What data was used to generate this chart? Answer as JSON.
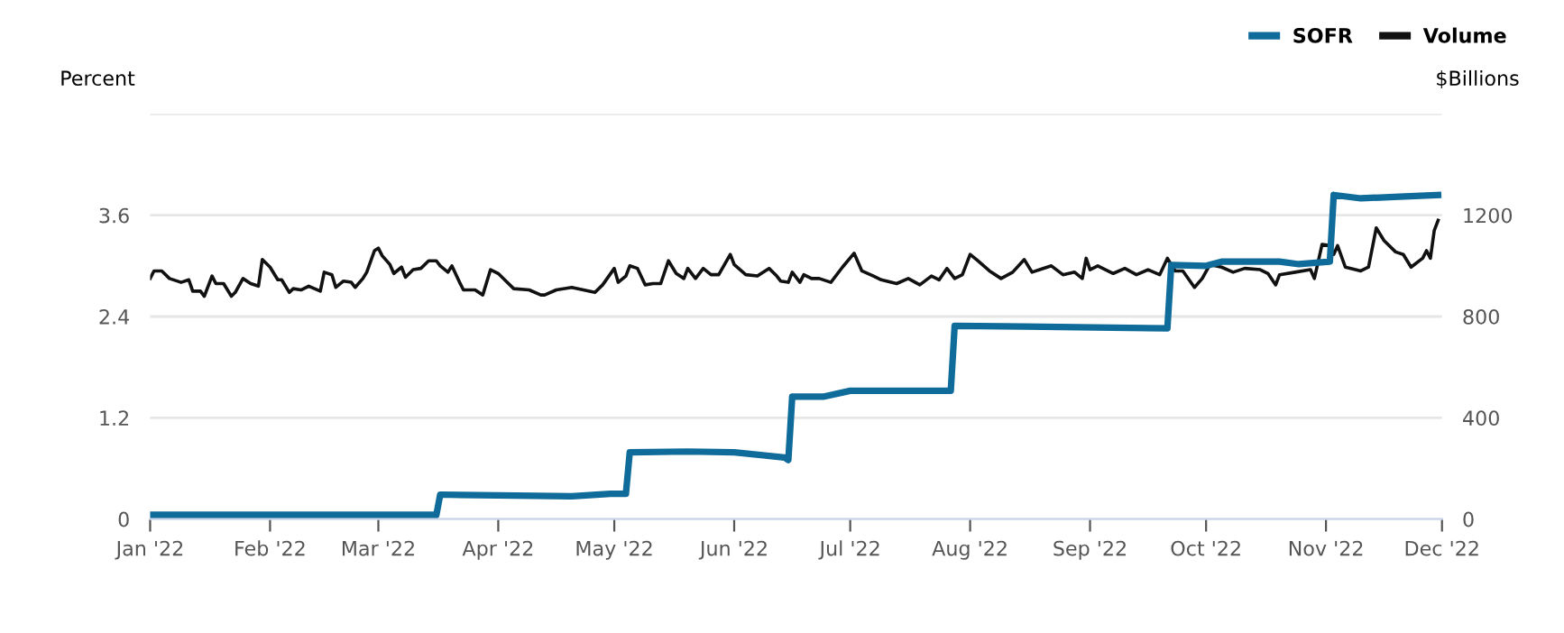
{
  "chart_data": {
    "type": "line",
    "xlabel": null,
    "ylabel": "Percent",
    "y2label": "$Billions",
    "xlim": [
      "2022-01-01",
      "2022-12-01"
    ],
    "xticks": [
      {
        "value": "2022-01-01",
        "label": "Jan '22"
      },
      {
        "value": "2022-02-01",
        "label": "Feb '22"
      },
      {
        "value": "2022-03-01",
        "label": "Mar '22"
      },
      {
        "value": "2022-04-01",
        "label": "Apr '22"
      },
      {
        "value": "2022-05-01",
        "label": "May '22"
      },
      {
        "value": "2022-06-01",
        "label": "Jun '22"
      },
      {
        "value": "2022-07-01",
        "label": "Jul '22"
      },
      {
        "value": "2022-08-01",
        "label": "Aug '22"
      },
      {
        "value": "2022-09-01",
        "label": "Sep '22"
      },
      {
        "value": "2022-10-01",
        "label": "Oct '22"
      },
      {
        "value": "2022-11-01",
        "label": "Nov '22"
      },
      {
        "value": "2022-12-01",
        "label": "Dec '22"
      }
    ],
    "ylim": [
      0,
      4.8
    ],
    "yticks": [
      0,
      1.2,
      2.4,
      3.6,
      {
        "value": 4.8,
        "label": null
      }
    ],
    "y2lim": [
      0,
      1600
    ],
    "y2ticks": [
      0,
      400,
      800,
      1200
    ],
    "grid": "y",
    "legend": "top right",
    "marker": "none",
    "line_style": "solid",
    "series": [
      {
        "name": "SOFR",
        "color": "#0f6b99",
        "axis": "y",
        "x": [
          "2022-01-01",
          "2022-03-16",
          "2022-03-17",
          "2022-04-01",
          "2022-04-20",
          "2022-04-30",
          "2022-05-04",
          "2022-05-05",
          "2022-05-20",
          "2022-06-01",
          "2022-06-14",
          "2022-06-15",
          "2022-06-16",
          "2022-06-24",
          "2022-07-01",
          "2022-07-27",
          "2022-07-28",
          "2022-08-15",
          "2022-09-21",
          "2022-09-22",
          "2022-10-01",
          "2022-10-05",
          "2022-10-20",
          "2022-10-25",
          "2022-11-02",
          "2022-11-03",
          "2022-11-10",
          "2022-11-20",
          "2022-11-30"
        ],
        "values": [
          0.05,
          0.05,
          0.29,
          0.28,
          0.27,
          0.3,
          0.3,
          0.79,
          0.8,
          0.79,
          0.73,
          0.7,
          1.45,
          1.45,
          1.52,
          1.52,
          2.29,
          2.28,
          2.26,
          3.01,
          3.0,
          3.05,
          3.05,
          3.02,
          3.05,
          3.84,
          3.8,
          3.82,
          3.84
        ]
      },
      {
        "name": "Volume",
        "color": "#111111",
        "axis": "y2",
        "x": [
          "2022-01-01",
          "2022-01-02",
          "2022-01-04",
          "2022-01-06",
          "2022-01-09",
          "2022-01-11",
          "2022-01-12",
          "2022-01-14",
          "2022-01-15",
          "2022-01-17",
          "2022-01-18",
          "2022-01-20",
          "2022-01-22",
          "2022-01-23",
          "2022-01-25",
          "2022-01-27",
          "2022-01-29",
          "2022-01-30",
          "2022-02-01",
          "2022-02-03",
          "2022-02-04",
          "2022-02-06",
          "2022-02-07",
          "2022-02-09",
          "2022-02-11",
          "2022-02-14",
          "2022-02-15",
          "2022-02-17",
          "2022-02-18",
          "2022-02-20",
          "2022-02-22",
          "2022-02-23",
          "2022-02-25",
          "2022-02-26",
          "2022-02-28",
          "2022-03-01",
          "2022-03-02",
          "2022-03-04",
          "2022-03-05",
          "2022-03-07",
          "2022-03-08",
          "2022-03-10",
          "2022-03-12",
          "2022-03-14",
          "2022-03-16",
          "2022-03-17",
          "2022-03-19",
          "2022-03-20",
          "2022-03-22",
          "2022-03-23",
          "2022-03-26",
          "2022-03-28",
          "2022-03-30",
          "2022-04-01",
          "2022-04-03",
          "2022-04-05",
          "2022-04-09",
          "2022-04-12",
          "2022-04-13",
          "2022-04-16",
          "2022-04-20",
          "2022-04-23",
          "2022-04-26",
          "2022-04-28",
          "2022-05-01",
          "2022-05-02",
          "2022-05-04",
          "2022-05-05",
          "2022-05-07",
          "2022-05-09",
          "2022-05-11",
          "2022-05-13",
          "2022-05-15",
          "2022-05-17",
          "2022-05-19",
          "2022-05-20",
          "2022-05-22",
          "2022-05-24",
          "2022-05-26",
          "2022-05-28",
          "2022-05-31",
          "2022-06-01",
          "2022-06-04",
          "2022-06-07",
          "2022-06-10",
          "2022-06-12",
          "2022-06-13",
          "2022-06-15",
          "2022-06-16",
          "2022-06-18",
          "2022-06-19",
          "2022-06-21",
          "2022-06-23",
          "2022-06-26",
          "2022-06-29",
          "2022-07-02",
          "2022-07-04",
          "2022-07-07",
          "2022-07-09",
          "2022-07-13",
          "2022-07-16",
          "2022-07-19",
          "2022-07-22",
          "2022-07-24",
          "2022-07-26",
          "2022-07-28",
          "2022-07-30",
          "2022-08-01",
          "2022-08-03",
          "2022-08-06",
          "2022-08-09",
          "2022-08-12",
          "2022-08-15",
          "2022-08-17",
          "2022-08-19",
          "2022-08-22",
          "2022-08-25",
          "2022-08-28",
          "2022-08-30",
          "2022-08-31",
          "2022-09-01",
          "2022-09-03",
          "2022-09-07",
          "2022-09-10",
          "2022-09-13",
          "2022-09-16",
          "2022-09-19",
          "2022-09-21",
          "2022-09-23",
          "2022-09-25",
          "2022-09-28",
          "2022-09-30",
          "2022-10-02",
          "2022-10-05",
          "2022-10-08",
          "2022-10-11",
          "2022-10-15",
          "2022-10-17",
          "2022-10-19",
          "2022-10-20",
          "2022-10-24",
          "2022-10-28",
          "2022-10-29",
          "2022-10-31",
          "2022-11-02",
          "2022-11-03",
          "2022-11-04",
          "2022-11-06",
          "2022-11-10",
          "2022-11-12",
          "2022-11-14",
          "2022-11-16",
          "2022-11-19",
          "2022-11-21",
          "2022-11-23",
          "2022-11-26",
          "2022-11-27",
          "2022-11-28",
          "2022-11-29",
          "2022-11-30"
        ],
        "values": [
          950,
          980,
          980,
          950,
          935,
          945,
          900,
          900,
          880,
          960,
          930,
          930,
          880,
          895,
          950,
          930,
          920,
          1025,
          995,
          945,
          945,
          895,
          910,
          905,
          920,
          900,
          975,
          965,
          915,
          940,
          935,
          915,
          950,
          975,
          1060,
          1070,
          1040,
          1005,
          970,
          995,
          955,
          985,
          990,
          1020,
          1020,
          1000,
          975,
          1000,
          935,
          905,
          905,
          885,
          985,
          970,
          940,
          910,
          905,
          885,
          885,
          905,
          915,
          905,
          895,
          925,
          990,
          935,
          960,
          1000,
          990,
          925,
          930,
          930,
          1020,
          970,
          950,
          990,
          950,
          990,
          965,
          965,
          1045,
          1005,
          965,
          960,
          990,
          960,
          940,
          935,
          975,
          935,
          965,
          950,
          950,
          935,
          995,
          1050,
          980,
          960,
          945,
          930,
          950,
          925,
          960,
          945,
          990,
          950,
          965,
          1045,
          1020,
          980,
          950,
          975,
          1025,
          975,
          985,
          1000,
          965,
          975,
          950,
          1030,
          985,
          1000,
          970,
          990,
          965,
          985,
          965,
          1030,
          980,
          980,
          915,
          950,
          1005,
          995,
          975,
          990,
          985,
          970,
          925,
          965,
          975,
          985,
          950,
          1085,
          1080,
          1045,
          1080,
          995,
          980,
          995,
          1150,
          1100,
          1055,
          1045,
          995,
          1030,
          1060,
          1030,
          1140,
          1180
        ]
      }
    ]
  }
}
